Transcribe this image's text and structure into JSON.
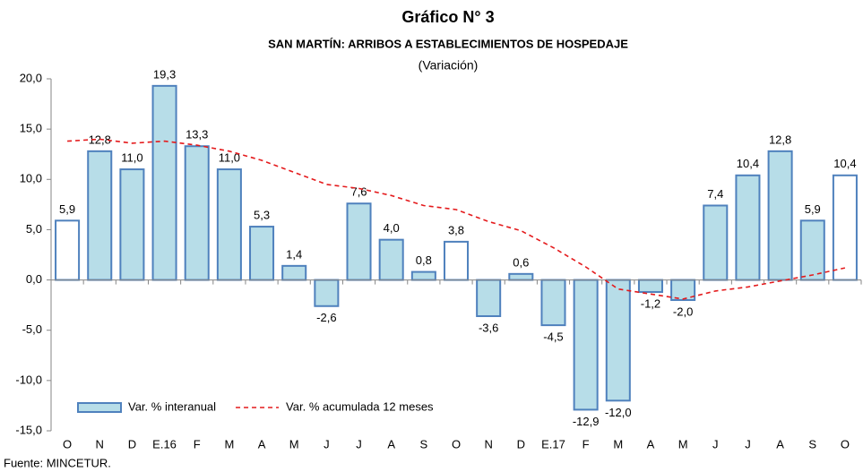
{
  "chart_data": {
    "type": "bar",
    "title": "Gráfico N° 3",
    "subtitle": "SAN MARTÍN: ARRIBOS A ESTABLECIMIENTOS DE HOSPEDAJE",
    "unit_note": "(Variación)",
    "source": "Fuente: MINCETUR.",
    "categories": [
      "O",
      "N",
      "D",
      "E.16",
      "F",
      "M",
      "A",
      "M",
      "J",
      "J",
      "A",
      "S",
      "O",
      "N",
      "D",
      "E.17",
      "F",
      "M",
      "A",
      "M",
      "J",
      "J",
      "A",
      "S",
      "O"
    ],
    "series": [
      {
        "name": "Var. % interanual",
        "type": "bar",
        "color": "#b7dde8",
        "edge": "#4f81bd",
        "colors": [
          "#ffffff",
          "#b7dde8",
          "#b7dde8",
          "#b7dde8",
          "#b7dde8",
          "#b7dde8",
          "#b7dde8",
          "#b7dde8",
          "#b7dde8",
          "#b7dde8",
          "#b7dde8",
          "#b7dde8",
          "#ffffff",
          "#b7dde8",
          "#b7dde8",
          "#b7dde8",
          "#b7dde8",
          "#b7dde8",
          "#b7dde8",
          "#b7dde8",
          "#b7dde8",
          "#b7dde8",
          "#b7dde8",
          "#b7dde8",
          "#ffffff"
        ],
        "values": [
          5.9,
          12.8,
          11.0,
          19.3,
          13.3,
          11.0,
          5.3,
          1.4,
          -2.6,
          7.6,
          4.0,
          0.8,
          3.8,
          -3.6,
          0.6,
          -4.5,
          -12.9,
          -12.0,
          -1.2,
          -2.0,
          7.4,
          10.4,
          12.8,
          5.9,
          10.4
        ],
        "value_labels": [
          "5,9",
          "12,8",
          "11,0",
          "19,3",
          "13,3",
          "11,0",
          "5,3",
          "1,4",
          "-2,6",
          "7,6",
          "4,0",
          "0,8",
          "3,8",
          "-3,6",
          "0,6",
          "-4,5",
          "-12,9",
          "-12,0",
          "-1,2",
          "-2,0",
          "7,4",
          "10,4",
          "12,8",
          "5,9",
          "10,4"
        ]
      },
      {
        "name": "Var. % acumulada 12 meses",
        "type": "line",
        "color": "#e41a1c",
        "values": [
          13.8,
          14.0,
          13.6,
          13.8,
          13.4,
          12.8,
          11.9,
          10.7,
          9.5,
          9.1,
          8.4,
          7.4,
          7.0,
          5.8,
          4.9,
          3.2,
          1.3,
          -0.9,
          -1.4,
          -1.9,
          -1.1,
          -0.7,
          -0.1,
          0.5,
          1.2
        ]
      }
    ],
    "ylim": [
      -15,
      20
    ],
    "yticks": [
      {
        "value": -15,
        "label": "-15,0"
      },
      {
        "value": -10,
        "label": "-10,0"
      },
      {
        "value": -5,
        "label": "-5,0"
      },
      {
        "value": 0,
        "label": "0,0"
      },
      {
        "value": 5,
        "label": "5,0"
      },
      {
        "value": 10,
        "label": "10,0"
      },
      {
        "value": 15,
        "label": "15,0"
      },
      {
        "value": 20,
        "label": "20,0"
      }
    ],
    "legend": "lower left"
  }
}
